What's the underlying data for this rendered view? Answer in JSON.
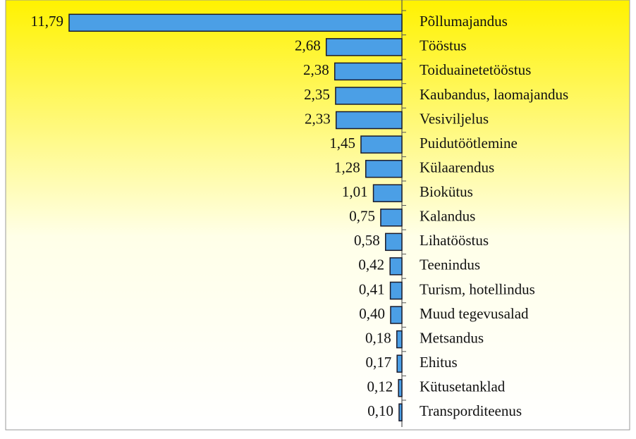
{
  "chart_data": {
    "type": "barh",
    "categories": [
      "Põllumajandus",
      "Tööstus",
      "Toiduainetetööstus",
      "Kaubandus, laomajandus",
      "Vesiviljelus",
      "Puidutöötlemine",
      "Külaarendus",
      "Biokütus",
      "Kalandus",
      "Lihatööstus",
      "Teenindus",
      "Turism, hotellindus",
      "Muud tegevusalad",
      "Metsandus",
      "Ehitus",
      "Kütusetanklad",
      "Transporditeenus"
    ],
    "values": [
      11.79,
      2.68,
      2.38,
      2.35,
      2.33,
      1.45,
      1.28,
      1.01,
      0.75,
      0.58,
      0.42,
      0.41,
      0.4,
      0.18,
      0.17,
      0.12,
      0.1
    ],
    "value_labels": [
      "11,79",
      "2,68",
      "2,38",
      "2,35",
      "2,33",
      "1,45",
      "1,28",
      "1,01",
      "0,75",
      "0,58",
      "0,42",
      "0,41",
      "0,40",
      "0,18",
      "0,17",
      "0,12",
      "0,10"
    ],
    "color": "#4b9fe6"
  }
}
